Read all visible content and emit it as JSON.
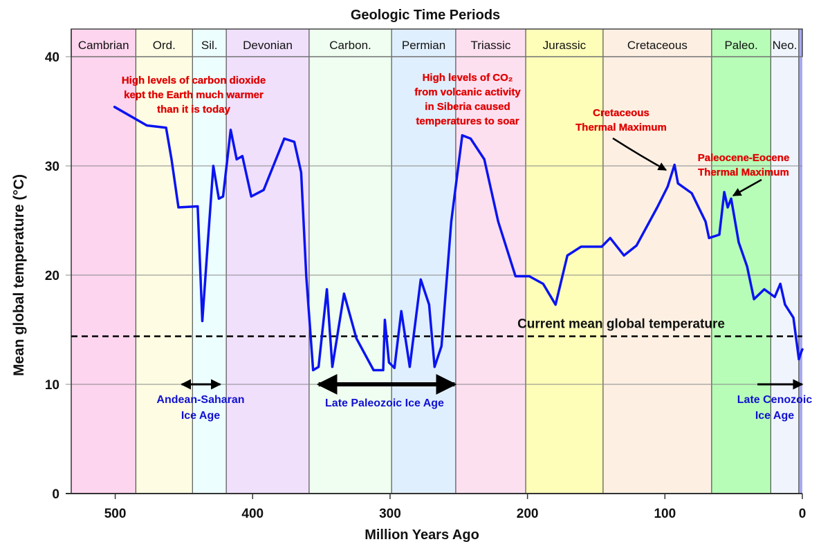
{
  "chart_data": {
    "type": "line",
    "title": "Geologic Time Periods",
    "xlabel": "Million Years Ago",
    "ylabel": "Mean global temperature (°C)",
    "xlim": [
      532,
      0
    ],
    "ylim": [
      0,
      40
    ],
    "x_ticks": [
      500,
      400,
      300,
      200,
      100,
      0
    ],
    "y_ticks": [
      0,
      10,
      20,
      30,
      40
    ],
    "grid": "horizontal",
    "periods": [
      {
        "label": "Cambrian",
        "start": 532,
        "end": 485,
        "color": "#fdd5ee"
      },
      {
        "label": "Ord.",
        "start": 485,
        "end": 443.8,
        "color": "#fefde3"
      },
      {
        "label": "Sil.",
        "start": 443.8,
        "end": 419.2,
        "color": "#edfefe"
      },
      {
        "label": "Devonian",
        "start": 419.2,
        "end": 358.9,
        "color": "#f0e0fc"
      },
      {
        "label": "Carbon.",
        "start": 358.9,
        "end": 298.9,
        "color": "#effef0"
      },
      {
        "label": "Permian",
        "start": 298.9,
        "end": 252.2,
        "color": "#e0effd"
      },
      {
        "label": "Triassic",
        "start": 252.2,
        "end": 201.3,
        "color": "#fde0f0"
      },
      {
        "label": "Jurassic",
        "start": 201.3,
        "end": 145,
        "color": "#fefeb9"
      },
      {
        "label": "Cretaceous",
        "start": 145,
        "end": 66,
        "color": "#fdf0e3"
      },
      {
        "label": "Paleo.",
        "start": 66,
        "end": 23,
        "color": "#b7fdb7"
      },
      {
        "label": "Neo.",
        "start": 23,
        "end": 2.6,
        "color": "#f0f5fd"
      },
      {
        "label": "",
        "start": 2.6,
        "end": 0,
        "color": "#a8a8f0"
      }
    ],
    "series": [
      {
        "color": "#0a14f0",
        "points": [
          [
            500.5,
            35.4
          ],
          [
            477,
            33.7
          ],
          [
            463,
            33.5
          ],
          [
            459,
            30.6
          ],
          [
            454,
            26.2
          ],
          [
            440,
            26.3
          ],
          [
            436.6,
            15.8
          ],
          [
            432.6,
            23
          ],
          [
            428.6,
            30
          ],
          [
            424.6,
            27
          ],
          [
            421.5,
            27.2
          ],
          [
            416,
            33.3
          ],
          [
            411.6,
            30.6
          ],
          [
            407.5,
            30.9
          ],
          [
            401,
            27.2
          ],
          [
            392,
            27.8
          ],
          [
            377,
            32.5
          ],
          [
            369.7,
            32.2
          ],
          [
            364.7,
            29.4
          ],
          [
            361,
            19.9
          ],
          [
            356,
            11.3
          ],
          [
            352,
            11.6
          ],
          [
            346,
            18.7
          ],
          [
            342,
            11.6
          ],
          [
            333.5,
            18.3
          ],
          [
            324.5,
            14.2
          ],
          [
            312,
            11.3
          ],
          [
            305,
            11.3
          ],
          [
            303.8,
            15.9
          ],
          [
            300.8,
            12
          ],
          [
            296.8,
            11.5
          ],
          [
            291.8,
            16.7
          ],
          [
            285.7,
            11.6
          ],
          [
            277.7,
            19.6
          ],
          [
            271.6,
            17.3
          ],
          [
            267.6,
            11.6
          ],
          [
            262.6,
            13.5
          ],
          [
            255.5,
            24.9
          ],
          [
            247.5,
            32.8
          ],
          [
            241.4,
            32.5
          ],
          [
            231.4,
            30.6
          ],
          [
            221.3,
            24.9
          ],
          [
            208.7,
            19.9
          ],
          [
            198.7,
            19.9
          ],
          [
            188.6,
            19.2
          ],
          [
            179.6,
            17.3
          ],
          [
            171,
            21.8
          ],
          [
            161,
            22.6
          ],
          [
            146,
            22.6
          ],
          [
            139.8,
            23.4
          ],
          [
            129.8,
            21.8
          ],
          [
            120.7,
            22.7
          ],
          [
            105.6,
            26.2
          ],
          [
            98,
            28.1
          ],
          [
            93,
            30.1
          ],
          [
            90.5,
            28.4
          ],
          [
            80.5,
            27.5
          ],
          [
            70.4,
            24.9
          ],
          [
            67.9,
            23.4
          ],
          [
            60.4,
            23.7
          ],
          [
            56.8,
            27.6
          ],
          [
            54.3,
            26.2
          ],
          [
            51.8,
            27
          ],
          [
            46.3,
            23
          ],
          [
            40.2,
            20.8
          ],
          [
            35.2,
            17.8
          ],
          [
            27.7,
            18.7
          ],
          [
            20.1,
            18
          ],
          [
            16,
            19.2
          ],
          [
            12.6,
            17.3
          ],
          [
            6.5,
            16.1
          ],
          [
            2.5,
            12.3
          ],
          [
            1,
            12.9
          ],
          [
            0,
            13.2
          ]
        ]
      }
    ],
    "reference_line": {
      "value": 14.4,
      "label": "Current mean global temperature",
      "style": "dashed"
    },
    "ice_ages": [
      {
        "label_lines": [
          "Andean-Saharan",
          "Ice Age"
        ],
        "start": 451.7,
        "end": 423.5
      },
      {
        "label_lines": [
          "Late Paleozoic Ice Age"
        ],
        "start": 352,
        "end": 253
      },
      {
        "label_lines": [
          "Late Cenozoic",
          "Ice Age"
        ],
        "start": 32.7,
        "end": 0
      }
    ],
    "annotations": [
      {
        "lines": [
          "High levels of carbon dioxide",
          "kept the Earth much warmer",
          "than it is today"
        ]
      },
      {
        "lines": [
          "High levels of CO₂",
          "from volcanic activity",
          "in Siberia caused",
          "temperatures to soar"
        ]
      },
      {
        "lines": [
          "Cretaceous",
          "Thermal Maximum"
        ]
      },
      {
        "lines": [
          "Paleocene-Eocene",
          "Thermal Maximum"
        ]
      }
    ]
  }
}
